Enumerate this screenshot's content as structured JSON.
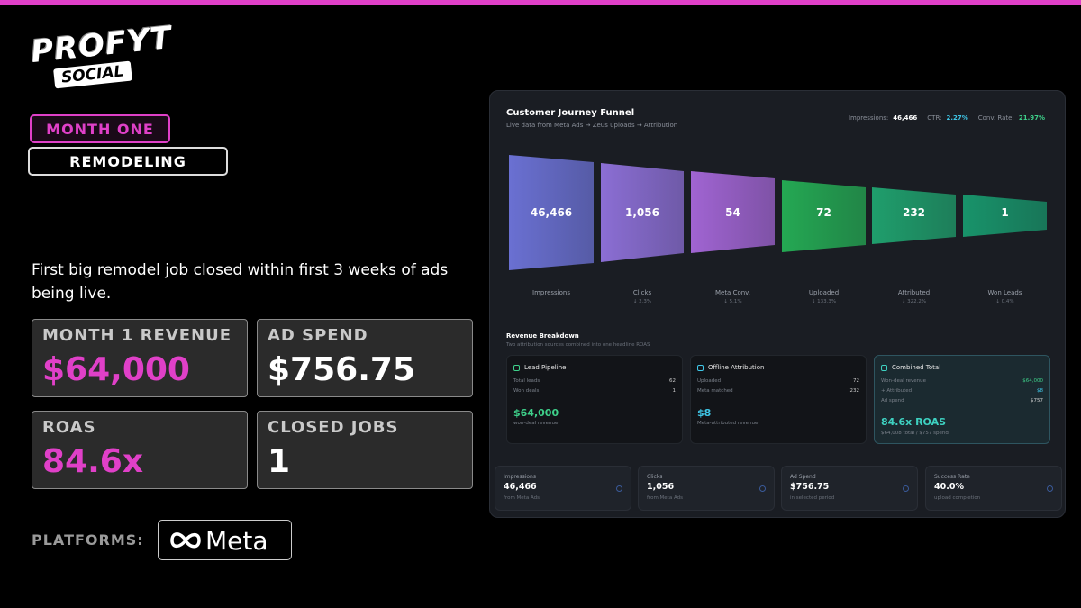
{
  "header": {
    "logo_line1": "PROFYT",
    "logo_line2": "SOCIAL"
  },
  "tags": [
    "MONTH ONE",
    "REMODELING"
  ],
  "description": "First big remodel job closed within first 3 weeks of ads being live.",
  "stats": [
    {
      "label": "MONTH 1 REVENUE",
      "value": "$64,000"
    },
    {
      "label": "AD SPEND",
      "value": "$756.75"
    },
    {
      "label": "ROAS",
      "value": "84.6x"
    },
    {
      "label": "CLOSED JOBS",
      "value": "1"
    }
  ],
  "platforms": {
    "label": "PLATFORMS:",
    "name": "Meta"
  },
  "dashboard": {
    "title": "Customer Journey Funnel",
    "subtitle": "Live data from Meta Ads → Zeus uploads → Attribution",
    "summary": [
      {
        "label": "Impressions:",
        "value": "46,466"
      },
      {
        "label": "CTR:",
        "value": "2.27%"
      },
      {
        "label": "Conv. Rate:",
        "value": "21.97%"
      }
    ],
    "funnel": [
      {
        "value": "46,466",
        "label": "Impressions"
      },
      {
        "value": "1,056",
        "label": "Clicks",
        "change": "↓ 2.3%"
      },
      {
        "value": "54",
        "label": "Meta Conv.",
        "change": "↓ 5.1%"
      },
      {
        "value": "72",
        "label": "Uploaded",
        "change": "↓ 133.3%"
      },
      {
        "value": "232",
        "label": "Attributed",
        "change": "↓ 322.2%"
      },
      {
        "value": "1",
        "label": "Won Leads",
        "change": "↓ 0.4%"
      }
    ],
    "breakdown": {
      "title": "Revenue Breakdown",
      "subtitle": "Two attribution sources combined into one headline ROAS",
      "cards": [
        {
          "title": "Lead Pipeline",
          "rows": [
            [
              "Total leads",
              "62"
            ],
            [
              "Won deals",
              "1"
            ]
          ],
          "amount": "$64,000",
          "note": "won-deal revenue"
        },
        {
          "title": "Offline Attribution",
          "rows": [
            [
              "Uploaded",
              "72"
            ],
            [
              "Meta matched",
              "232"
            ]
          ],
          "amount": "$8",
          "note": "Meta-attributed revenue"
        },
        {
          "title": "Combined Total",
          "rows": [
            [
              "Won-deal revenue",
              "$64,000"
            ],
            [
              "+ Attributed",
              "$8"
            ],
            [
              "Ad spend",
              "$757"
            ]
          ],
          "amount": "84.6x ROAS",
          "note": "$64,008 total / $757 spend"
        }
      ]
    },
    "metrics": [
      {
        "label": "Impressions",
        "value": "46,466",
        "note": "from Meta Ads"
      },
      {
        "label": "Clicks",
        "value": "1,056",
        "note": "from Meta Ads"
      },
      {
        "label": "Ad Spend",
        "value": "$756.75",
        "note": "in selected period"
      },
      {
        "label": "Success Rate",
        "value": "40.0%",
        "note": "upload completion"
      }
    ]
  }
}
